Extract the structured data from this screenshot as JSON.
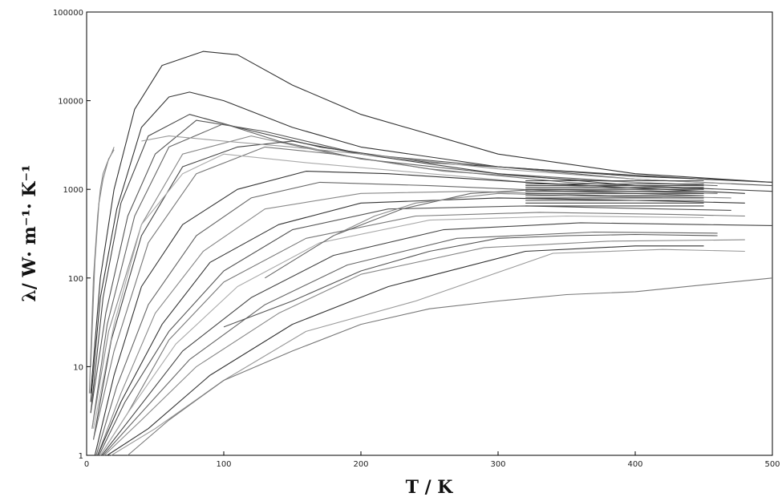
{
  "chart_data": {
    "type": "line",
    "xlabel": "T / K",
    "ylabel": "λ/ W· m⁻¹· K⁻¹",
    "xlim": [
      0,
      500
    ],
    "ylim": [
      1,
      100000
    ],
    "y_scale": "log",
    "x_ticks": [
      "0",
      "100",
      "200",
      "300",
      "400",
      "500"
    ],
    "y_ticks": [
      "1",
      "10",
      "100",
      "1000",
      "10000",
      "100000"
    ],
    "grid": false,
    "legend": "none",
    "series": [
      {
        "color": "#333333",
        "points": [
          [
            3,
            5
          ],
          [
            10,
            100
          ],
          [
            20,
            1000
          ],
          [
            35,
            8000
          ],
          [
            55,
            25000
          ],
          [
            85,
            36000
          ],
          [
            110,
            33000
          ],
          [
            150,
            15000
          ],
          [
            200,
            7000
          ],
          [
            300,
            2500
          ],
          [
            400,
            1500
          ],
          [
            500,
            1200
          ]
        ]
      },
      {
        "color": "#333333",
        "points": [
          [
            3,
            4
          ],
          [
            10,
            60
          ],
          [
            22,
            600
          ],
          [
            40,
            5000
          ],
          [
            60,
            11000
          ],
          [
            75,
            12500
          ],
          [
            100,
            10000
          ],
          [
            150,
            5000
          ],
          [
            200,
            3000
          ],
          [
            300,
            1800
          ],
          [
            400,
            1400
          ],
          [
            480,
            1250
          ]
        ]
      },
      {
        "color": "#444444",
        "points": [
          [
            3,
            3
          ],
          [
            12,
            60
          ],
          [
            25,
            700
          ],
          [
            45,
            4000
          ],
          [
            75,
            7000
          ],
          [
            110,
            5000
          ],
          [
            170,
            3000
          ],
          [
            250,
            2000
          ],
          [
            350,
            1600
          ],
          [
            450,
            1300
          ],
          [
            500,
            1200
          ]
        ]
      },
      {
        "color": "#555555",
        "points": [
          [
            3,
            3
          ],
          [
            14,
            40
          ],
          [
            30,
            500
          ],
          [
            50,
            2500
          ],
          [
            80,
            6000
          ],
          [
            130,
            4500
          ],
          [
            200,
            2500
          ],
          [
            300,
            1800
          ],
          [
            400,
            1300
          ],
          [
            500,
            1100
          ]
        ]
      },
      {
        "color": "#666666",
        "points": [
          [
            4,
            2
          ],
          [
            15,
            30
          ],
          [
            35,
            500
          ],
          [
            60,
            3000
          ],
          [
            100,
            5500
          ],
          [
            140,
            3500
          ],
          [
            200,
            2200
          ],
          [
            300,
            1500
          ],
          [
            400,
            1200
          ],
          [
            460,
            1100
          ]
        ]
      },
      {
        "color": "#888888",
        "points": [
          [
            4,
            2
          ],
          [
            16,
            25
          ],
          [
            40,
            400
          ],
          [
            70,
            2500
          ],
          [
            120,
            4000
          ],
          [
            180,
            2500
          ],
          [
            260,
            1600
          ],
          [
            350,
            1300
          ],
          [
            450,
            1100
          ]
        ]
      },
      {
        "color": "#444444",
        "points": [
          [
            5,
            1.5
          ],
          [
            18,
            20
          ],
          [
            40,
            300
          ],
          [
            70,
            1800
          ],
          [
            110,
            3000
          ],
          [
            150,
            3500
          ],
          [
            200,
            2500
          ],
          [
            300,
            1500
          ],
          [
            400,
            1100
          ],
          [
            500,
            950
          ]
        ]
      },
      {
        "color": "#777777",
        "points": [
          [
            5,
            1.5
          ],
          [
            20,
            15
          ],
          [
            45,
            250
          ],
          [
            80,
            1500
          ],
          [
            130,
            3000
          ],
          [
            180,
            2500
          ],
          [
            250,
            1700
          ],
          [
            350,
            1200
          ],
          [
            450,
            1000
          ]
        ]
      },
      {
        "color": "#999999",
        "points": [
          [
            40,
            3500
          ],
          [
            60,
            4000
          ],
          [
            100,
            3500
          ],
          [
            150,
            3000
          ],
          [
            200,
            2500
          ],
          [
            300,
            1700
          ],
          [
            400,
            1300
          ],
          [
            470,
            1150
          ]
        ]
      },
      {
        "color": "#aaaaaa",
        "points": [
          [
            5,
            2
          ],
          [
            20,
            30
          ],
          [
            40,
            400
          ],
          [
            70,
            1500
          ],
          [
            100,
            2500
          ],
          [
            160,
            2000
          ],
          [
            250,
            1500
          ],
          [
            350,
            1100
          ],
          [
            450,
            900
          ]
        ]
      },
      {
        "color": "#333333",
        "points": [
          [
            6,
            1
          ],
          [
            20,
            8
          ],
          [
            40,
            80
          ],
          [
            70,
            400
          ],
          [
            110,
            1000
          ],
          [
            160,
            1600
          ],
          [
            220,
            1500
          ],
          [
            320,
            1200
          ],
          [
            420,
            1000
          ],
          [
            480,
            900
          ]
        ]
      },
      {
        "color": "#666666",
        "points": [
          [
            7,
            1
          ],
          [
            22,
            6
          ],
          [
            45,
            50
          ],
          [
            80,
            300
          ],
          [
            120,
            800
          ],
          [
            170,
            1200
          ],
          [
            250,
            1100
          ],
          [
            350,
            950
          ],
          [
            450,
            850
          ]
        ]
      },
      {
        "color": "#888888",
        "points": [
          [
            8,
            1
          ],
          [
            25,
            5
          ],
          [
            50,
            40
          ],
          [
            85,
            200
          ],
          [
            130,
            600
          ],
          [
            200,
            900
          ],
          [
            280,
            950
          ],
          [
            380,
            850
          ],
          [
            470,
            800
          ]
        ]
      },
      {
        "color": "#333333",
        "points": [
          [
            8,
            1
          ],
          [
            25,
            4
          ],
          [
            55,
            30
          ],
          [
            90,
            150
          ],
          [
            140,
            400
          ],
          [
            200,
            700
          ],
          [
            300,
            800
          ],
          [
            400,
            750
          ],
          [
            480,
            700
          ]
        ]
      },
      {
        "color": "#555555",
        "points": [
          [
            9,
            1
          ],
          [
            28,
            4
          ],
          [
            60,
            25
          ],
          [
            100,
            120
          ],
          [
            150,
            350
          ],
          [
            220,
            600
          ],
          [
            320,
            650
          ],
          [
            420,
            600
          ],
          [
            470,
            580
          ]
        ]
      },
      {
        "color": "#777777",
        "points": [
          [
            10,
            1
          ],
          [
            30,
            3
          ],
          [
            60,
            20
          ],
          [
            100,
            90
          ],
          [
            160,
            280
          ],
          [
            240,
            500
          ],
          [
            330,
            550
          ],
          [
            430,
            520
          ],
          [
            480,
            500
          ]
        ]
      },
      {
        "color": "#aaaaaa",
        "points": [
          [
            10,
            1
          ],
          [
            30,
            3
          ],
          [
            65,
            18
          ],
          [
            110,
            80
          ],
          [
            170,
            250
          ],
          [
            250,
            450
          ],
          [
            350,
            500
          ],
          [
            450,
            480
          ]
        ]
      },
      {
        "color": "#444444",
        "points": [
          [
            11,
            1
          ],
          [
            35,
            3
          ],
          [
            70,
            15
          ],
          [
            120,
            60
          ],
          [
            180,
            180
          ],
          [
            260,
            350
          ],
          [
            360,
            420
          ],
          [
            450,
            400
          ],
          [
            500,
            390
          ]
        ]
      },
      {
        "color": "#666666",
        "points": [
          [
            12,
            1
          ],
          [
            35,
            2.5
          ],
          [
            75,
            12
          ],
          [
            130,
            50
          ],
          [
            190,
            140
          ],
          [
            270,
            280
          ],
          [
            370,
            330
          ],
          [
            460,
            320
          ]
        ]
      },
      {
        "color": "#888888",
        "points": [
          [
            13,
            1
          ],
          [
            40,
            2.5
          ],
          [
            80,
            10
          ],
          [
            140,
            40
          ],
          [
            200,
            110
          ],
          [
            290,
            220
          ],
          [
            380,
            260
          ],
          [
            480,
            270
          ]
        ]
      },
      {
        "color": "#333333",
        "points": [
          [
            15,
            1
          ],
          [
            45,
            2
          ],
          [
            90,
            8
          ],
          [
            150,
            30
          ],
          [
            220,
            80
          ],
          [
            320,
            200
          ],
          [
            400,
            230
          ],
          [
            450,
            230
          ]
        ]
      },
      {
        "color": "#999999",
        "points": [
          [
            18,
            1
          ],
          [
            50,
            2
          ],
          [
            100,
            7
          ],
          [
            160,
            25
          ],
          [
            240,
            55
          ],
          [
            340,
            190
          ],
          [
            420,
            210
          ],
          [
            480,
            200
          ]
        ]
      },
      {
        "color": "#555555",
        "points": [
          [
            100,
            28
          ],
          [
            150,
            55
          ],
          [
            200,
            120
          ],
          [
            250,
            200
          ],
          [
            300,
            280
          ],
          [
            350,
            300
          ],
          [
            400,
            310
          ],
          [
            460,
            300
          ]
        ]
      },
      {
        "color": "#777777",
        "points": [
          [
            30,
            1
          ],
          [
            60,
            2.5
          ],
          [
            100,
            7
          ],
          [
            150,
            15
          ],
          [
            200,
            30
          ],
          [
            250,
            45
          ],
          [
            300,
            55
          ],
          [
            350,
            65
          ],
          [
            400,
            70
          ],
          [
            500,
            100
          ]
        ]
      },
      {
        "color": "#666666",
        "points": [
          [
            130,
            100
          ],
          [
            180,
            300
          ],
          [
            230,
            600
          ],
          [
            280,
            900
          ],
          [
            330,
            1000
          ],
          [
            400,
            950
          ],
          [
            460,
            900
          ]
        ]
      },
      {
        "color": "#888888",
        "points": [
          [
            180,
            300
          ],
          [
            210,
            500
          ],
          [
            240,
            700
          ],
          [
            270,
            800
          ],
          [
            300,
            900
          ],
          [
            350,
            850
          ],
          [
            420,
            800
          ]
        ]
      },
      {
        "color": "#444444",
        "points": [
          [
            320,
            650
          ],
          [
            450,
            650
          ]
        ]
      },
      {
        "color": "#444444",
        "points": [
          [
            320,
            750
          ],
          [
            450,
            750
          ]
        ]
      },
      {
        "color": "#444444",
        "points": [
          [
            320,
            850
          ],
          [
            450,
            850
          ]
        ]
      },
      {
        "color": "#444444",
        "points": [
          [
            320,
            950
          ],
          [
            450,
            950
          ]
        ]
      },
      {
        "color": "#444444",
        "points": [
          [
            320,
            1050
          ],
          [
            450,
            1050
          ]
        ]
      },
      {
        "color": "#444444",
        "points": [
          [
            320,
            1150
          ],
          [
            450,
            1150
          ]
        ]
      },
      {
        "color": "#444444",
        "points": [
          [
            320,
            1250
          ],
          [
            450,
            1250
          ]
        ]
      },
      {
        "color": "#444444",
        "points": [
          [
            320,
            700
          ],
          [
            450,
            700
          ]
        ]
      },
      {
        "color": "#444444",
        "points": [
          [
            320,
            800
          ],
          [
            450,
            800
          ]
        ]
      },
      {
        "color": "#444444",
        "points": [
          [
            320,
            900
          ],
          [
            450,
            900
          ]
        ]
      },
      {
        "color": "#444444",
        "points": [
          [
            320,
            1000
          ],
          [
            450,
            1000
          ]
        ]
      },
      {
        "color": "#444444",
        "points": [
          [
            320,
            1100
          ],
          [
            450,
            1100
          ]
        ]
      },
      {
        "color": "#888888",
        "points": [
          [
            2,
            5
          ],
          [
            5,
            100
          ],
          [
            8,
            500
          ],
          [
            10,
            1000
          ],
          [
            12,
            1500
          ],
          [
            15,
            2000
          ],
          [
            18,
            2500
          ],
          [
            20,
            3000
          ]
        ]
      },
      {
        "color": "#888888",
        "points": [
          [
            3,
            10
          ],
          [
            6,
            150
          ],
          [
            9,
            700
          ],
          [
            12,
            1300
          ],
          [
            16,
            2200
          ],
          [
            20,
            2800
          ]
        ]
      }
    ]
  }
}
